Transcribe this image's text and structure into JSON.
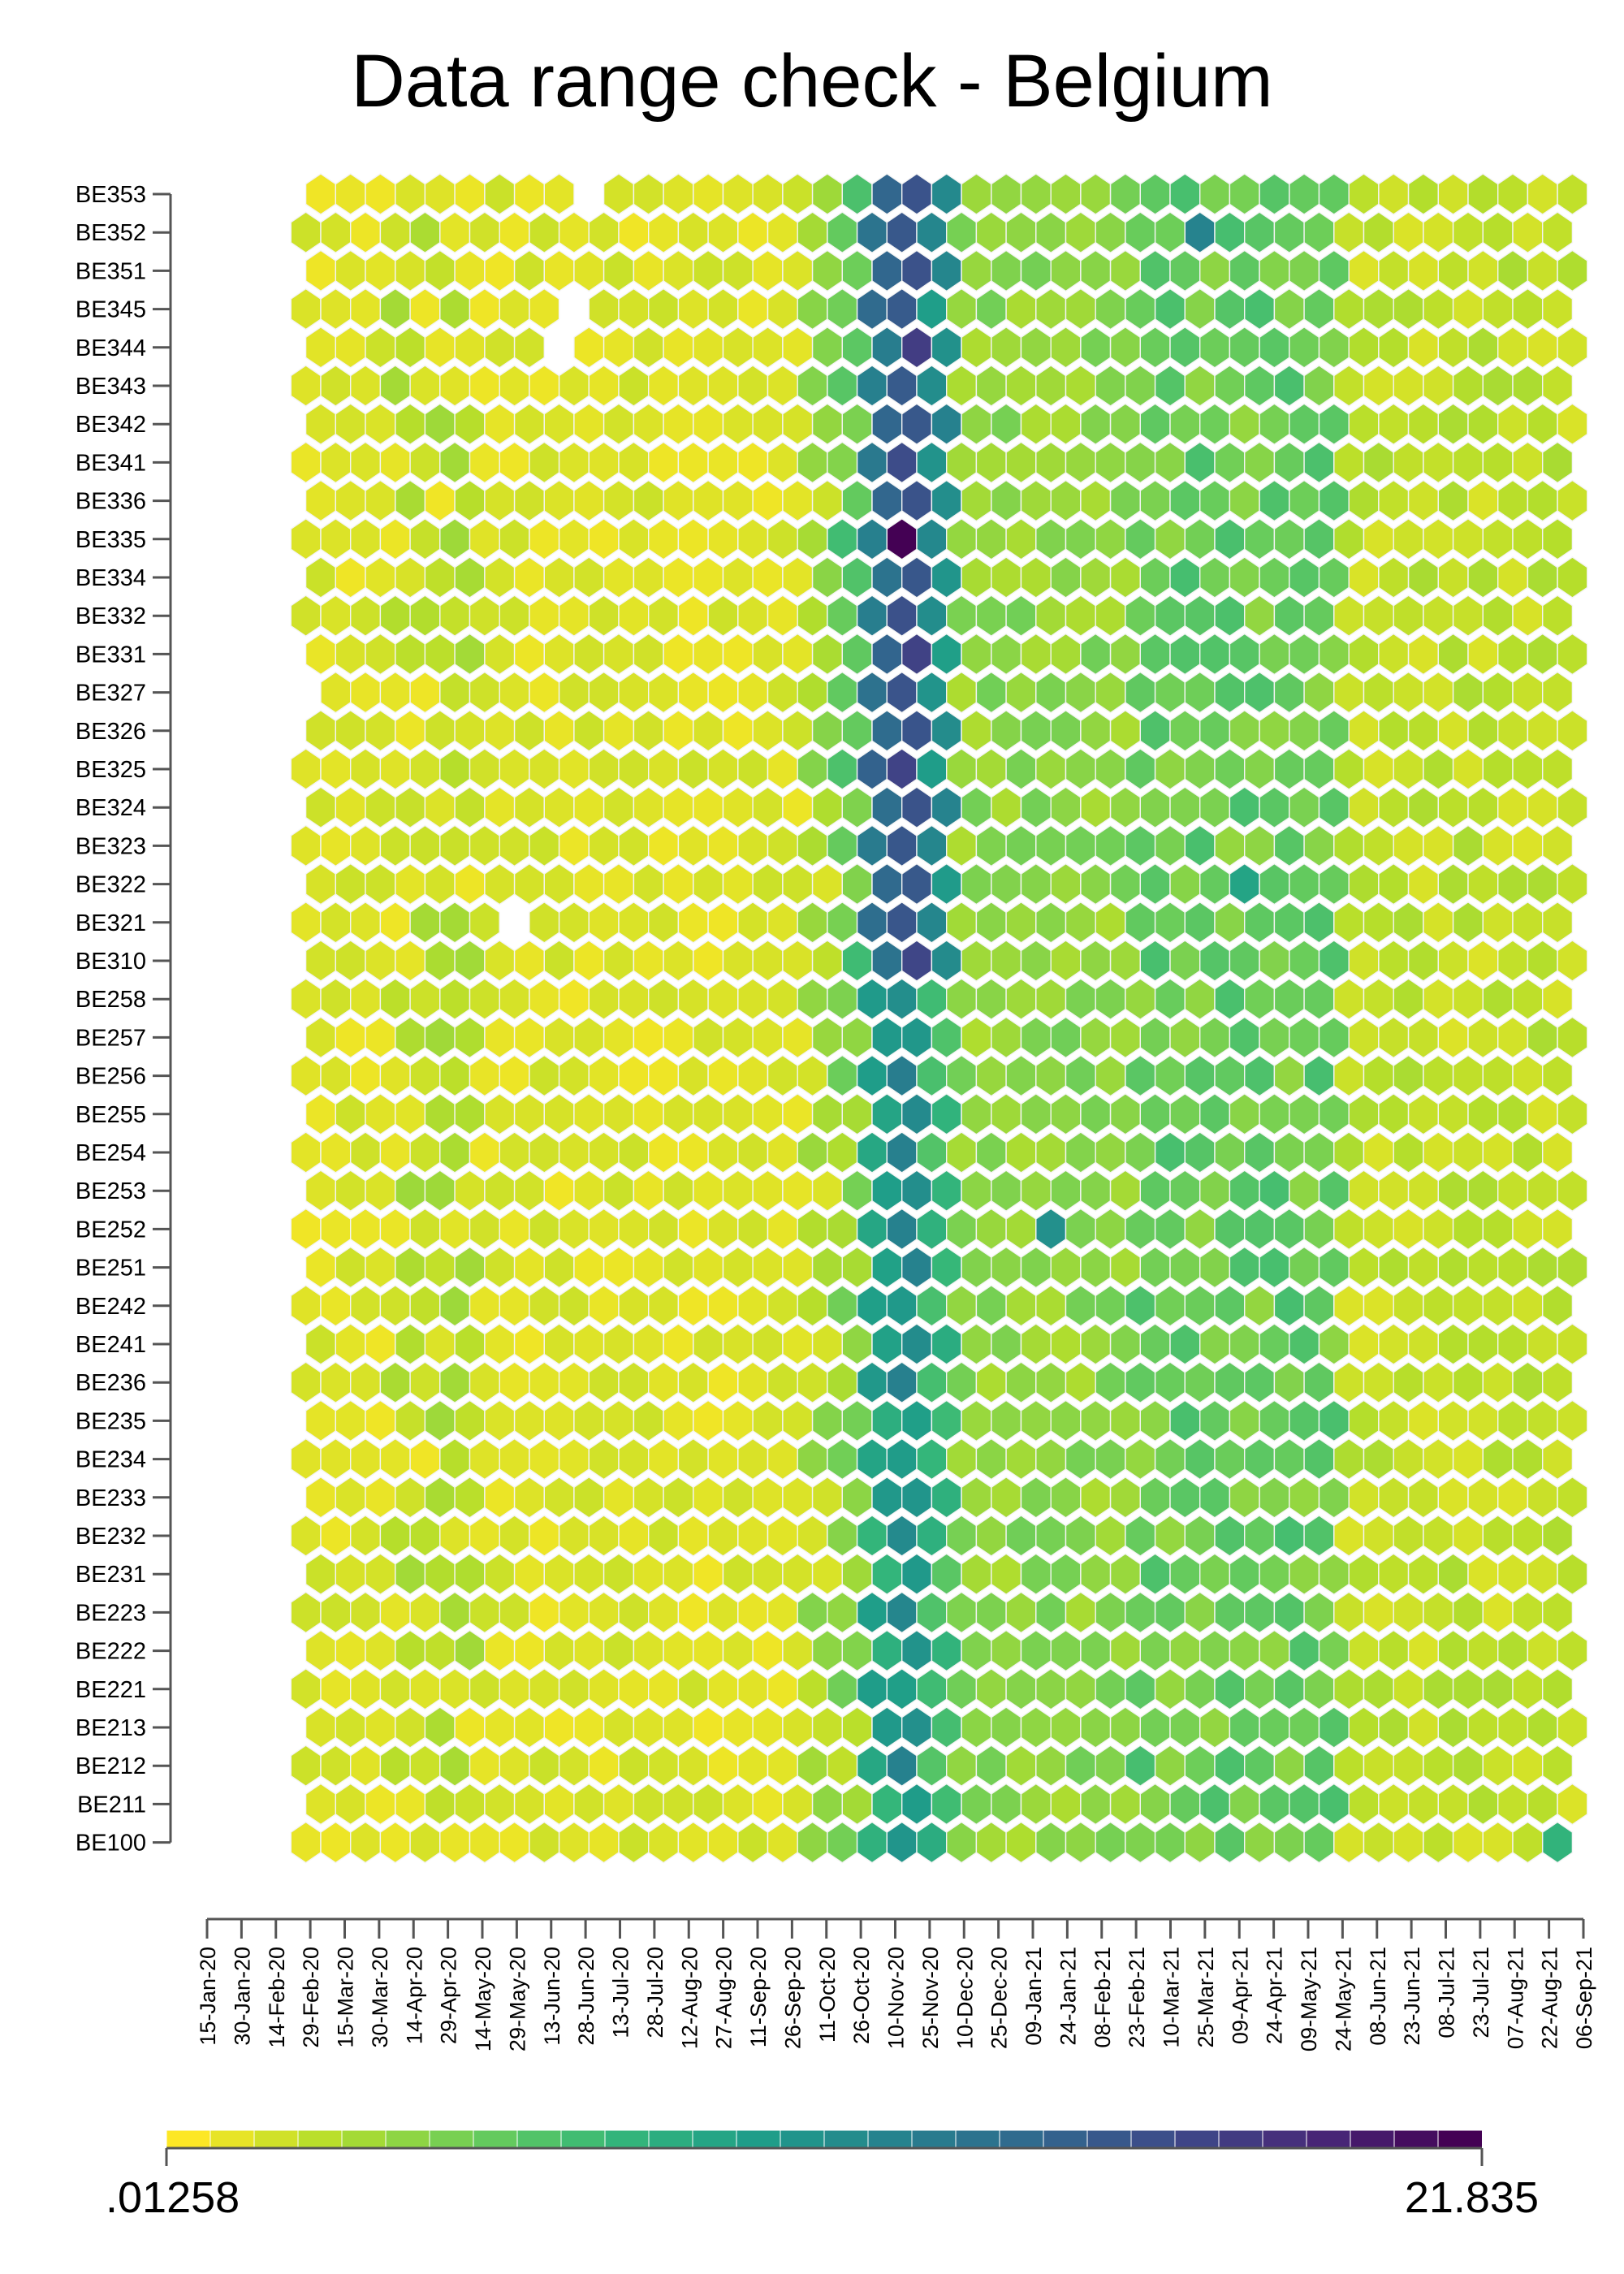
{
  "title": "Data range check - Belgium",
  "chart_data": {
    "type": "heatmap",
    "title": "Data range check - Belgium",
    "regions": [
      "BE353",
      "BE352",
      "BE351",
      "BE345",
      "BE344",
      "BE343",
      "BE342",
      "BE341",
      "BE336",
      "BE335",
      "BE334",
      "BE332",
      "BE331",
      "BE327",
      "BE326",
      "BE325",
      "BE324",
      "BE323",
      "BE322",
      "BE321",
      "BE310",
      "BE258",
      "BE257",
      "BE256",
      "BE255",
      "BE254",
      "BE253",
      "BE252",
      "BE251",
      "BE242",
      "BE241",
      "BE236",
      "BE235",
      "BE234",
      "BE233",
      "BE232",
      "BE231",
      "BE223",
      "BE222",
      "BE221",
      "BE213",
      "BE212",
      "BE211",
      "BE100"
    ],
    "x_tick_labels": [
      "15-Jan-20",
      "30-Jan-20",
      "14-Feb-20",
      "29-Feb-20",
      "15-Mar-20",
      "30-Mar-20",
      "14-Apr-20",
      "29-Apr-20",
      "14-May-20",
      "29-May-20",
      "13-Jun-20",
      "28-Jun-20",
      "13-Jul-20",
      "28-Jul-20",
      "12-Aug-20",
      "27-Aug-20",
      "11-Sep-20",
      "26-Sep-20",
      "11-Oct-20",
      "26-Oct-20",
      "10-Nov-20",
      "25-Nov-20",
      "10-Dec-20",
      "25-Dec-20",
      "09-Jan-21",
      "24-Jan-21",
      "08-Feb-21",
      "23-Feb-21",
      "10-Mar-21",
      "25-Mar-21",
      "09-Apr-21",
      "24-Apr-21",
      "09-May-21",
      "24-May-21",
      "08-Jun-21",
      "23-Jun-21",
      "08-Jul-21",
      "23-Jul-21",
      "07-Aug-21",
      "22-Aug-21",
      "06-Sep-21"
    ],
    "time_bins": 43,
    "colorscale": "viridis (reversed): yellow = low, purple = high",
    "color_range": [
      0.01258,
      21.835
    ],
    "legend": {
      "min_label": ".01258",
      "max_label": "21.835",
      "placement": "bottom"
    },
    "peak": {
      "region": "BE335",
      "date": "26-Oct-20",
      "value": 21.835
    },
    "missing_cells": [
      {
        "region": "BE353",
        "bin": 9
      },
      {
        "region": "BE345",
        "bin": 9
      },
      {
        "region": "BE344",
        "bin": 8
      },
      {
        "region": "BE327",
        "bin": 0
      },
      {
        "region": "BE321",
        "bin": 7
      }
    ],
    "hotspots": [
      {
        "region": "BE352",
        "bin": 30,
        "level": 0.55
      },
      {
        "region": "BE252",
        "bin": 25,
        "level": 0.5
      },
      {
        "region": "BE322",
        "bin": 31,
        "level": 0.42
      },
      {
        "region": "BE100",
        "bin": 42,
        "level": 0.35
      }
    ]
  }
}
